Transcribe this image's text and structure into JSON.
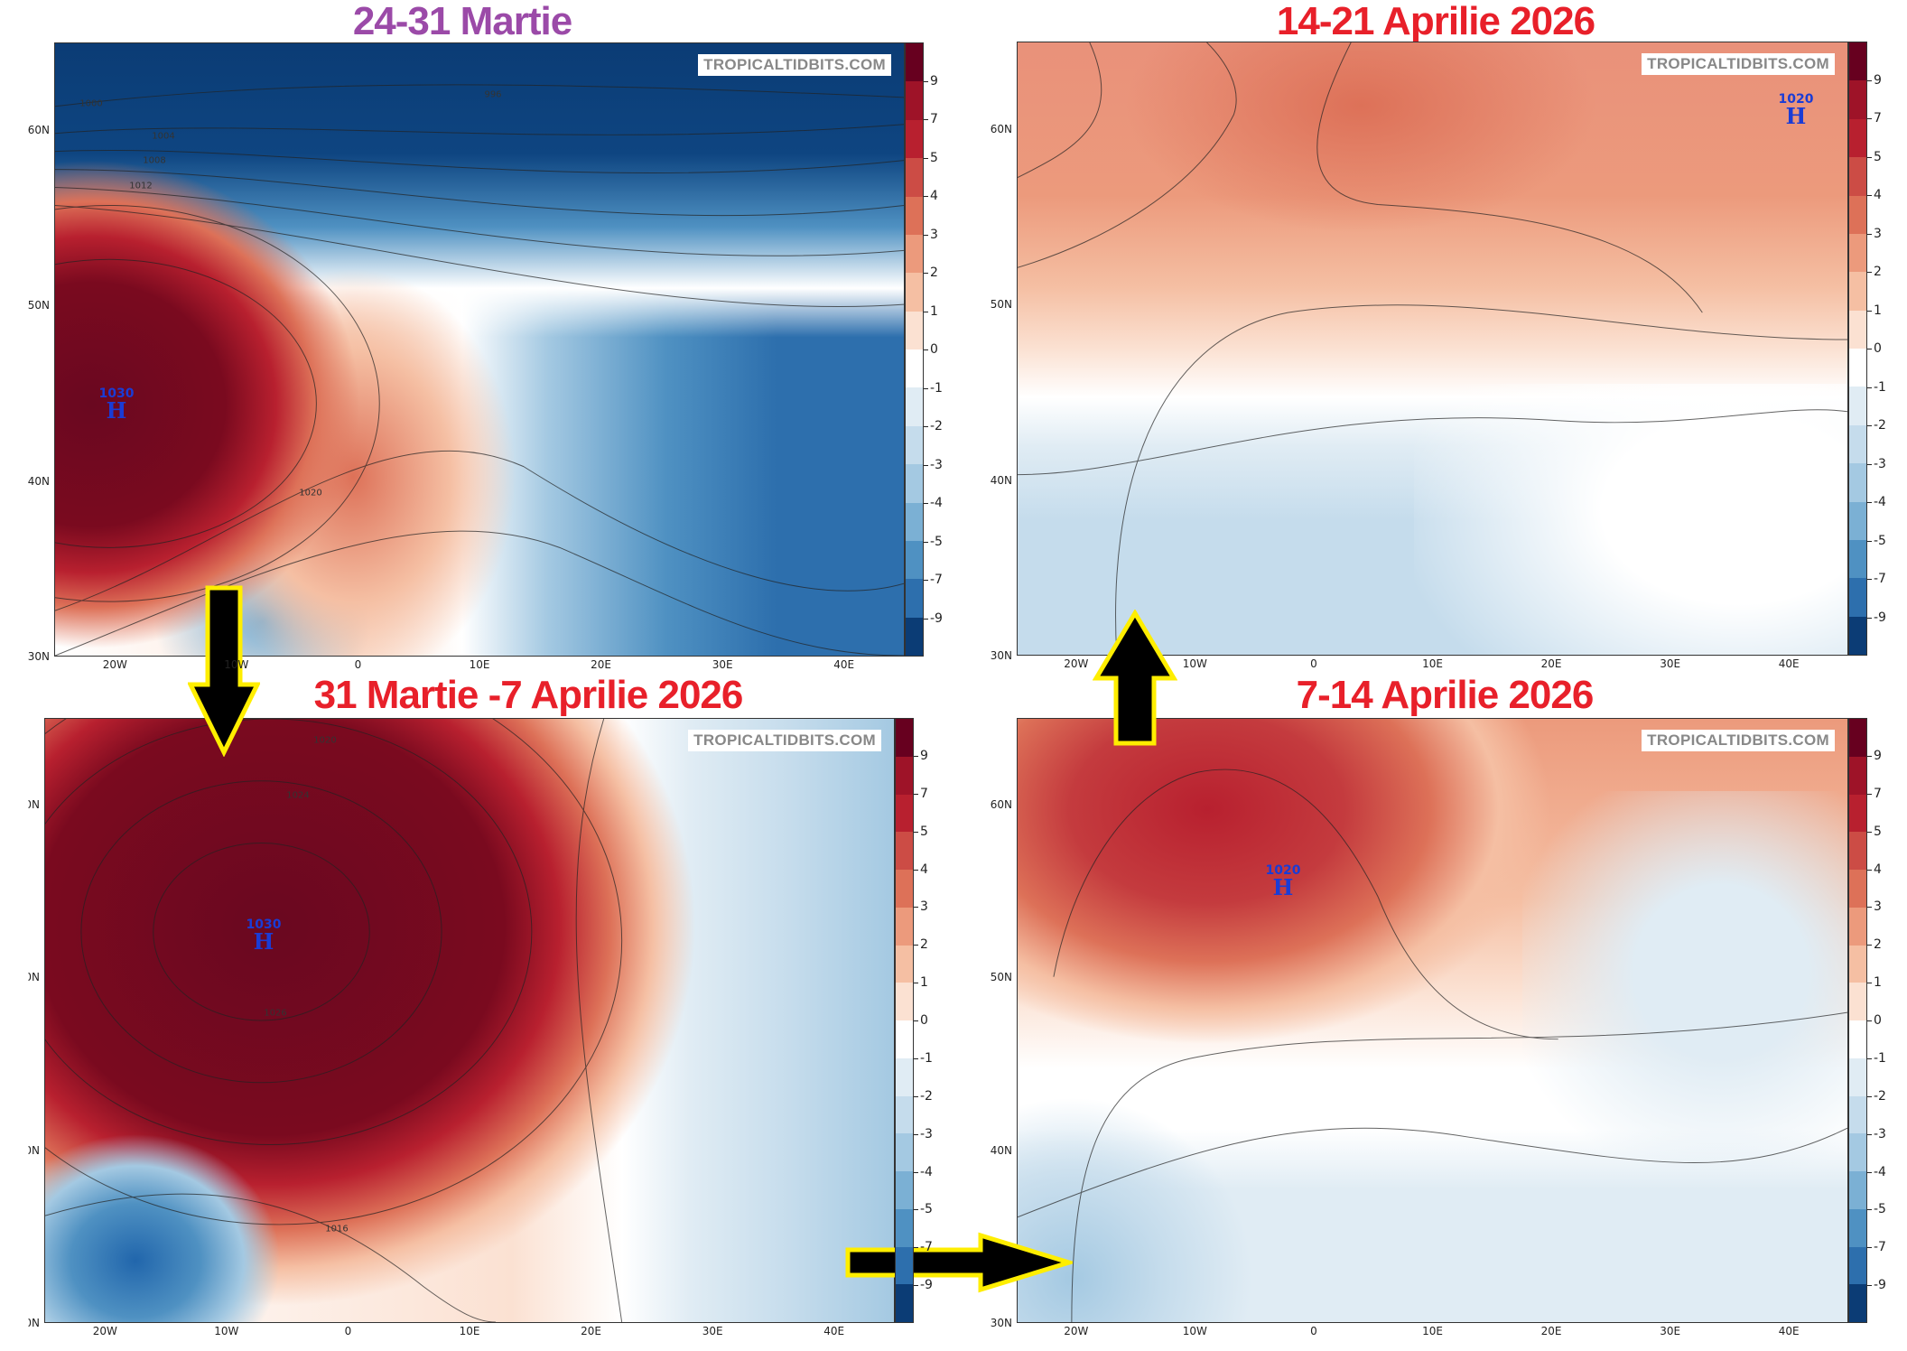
{
  "panels": [
    {
      "title": "24-31 Martie",
      "title_color": "#9b4aa8",
      "watermark": "TROPICALTIDBITS.COM",
      "high": {
        "value": "1030",
        "letter": "H"
      },
      "contour_labels": [
        "1000",
        "1004",
        "1008",
        "1012",
        "1020",
        "996"
      ]
    },
    {
      "title": "14-21 Aprilie 2026",
      "title_color": "#e8202a",
      "watermark": "TROPICALTIDBITS.COM",
      "high": {
        "value": "1020",
        "letter": "H"
      },
      "contour_labels": []
    },
    {
      "title": "31 Martie -7 Aprilie 2026",
      "title_color": "#e8202a",
      "watermark": "TROPICALTIDBITS.COM",
      "high": {
        "value": "1030",
        "letter": "H"
      },
      "contour_labels": [
        "1020",
        "1024",
        "1026",
        "1016"
      ]
    },
    {
      "title": "7-14 Aprilie 2026",
      "title_color": "#e8202a",
      "watermark": "TROPICALTIDBITS.COM",
      "high": {
        "value": "1020",
        "letter": "H"
      },
      "contour_labels": []
    }
  ],
  "axes": {
    "lat_labels": [
      "60N",
      "50N",
      "40N",
      "30N"
    ],
    "lon_labels": [
      "20W",
      "10W",
      "0",
      "10E",
      "20E",
      "30E",
      "40E"
    ]
  },
  "colorbar": {
    "labels": [
      "9",
      "7",
      "5",
      "4",
      "3",
      "2",
      "1",
      "0",
      "-1",
      "-2",
      "-3",
      "-4",
      "-5",
      "-7",
      "-9"
    ],
    "colors": [
      "#67001f",
      "#9e1328",
      "#b8202f",
      "#cc4c45",
      "#dd7158",
      "#ec9a7c",
      "#f5bfa3",
      "#fbe1d2",
      "#ffffff",
      "#e0ecf4",
      "#c5dcec",
      "#a4c9e2",
      "#7bb0d4",
      "#4f91c2",
      "#2d6fad",
      "#0b3c75"
    ]
  },
  "arrows": [
    {
      "direction": "down",
      "color": "#000000",
      "outline": "#ffee00"
    },
    {
      "direction": "right",
      "color": "#000000",
      "outline": "#ffee00"
    },
    {
      "direction": "up",
      "color": "#000000",
      "outline": "#ffee00"
    }
  ]
}
